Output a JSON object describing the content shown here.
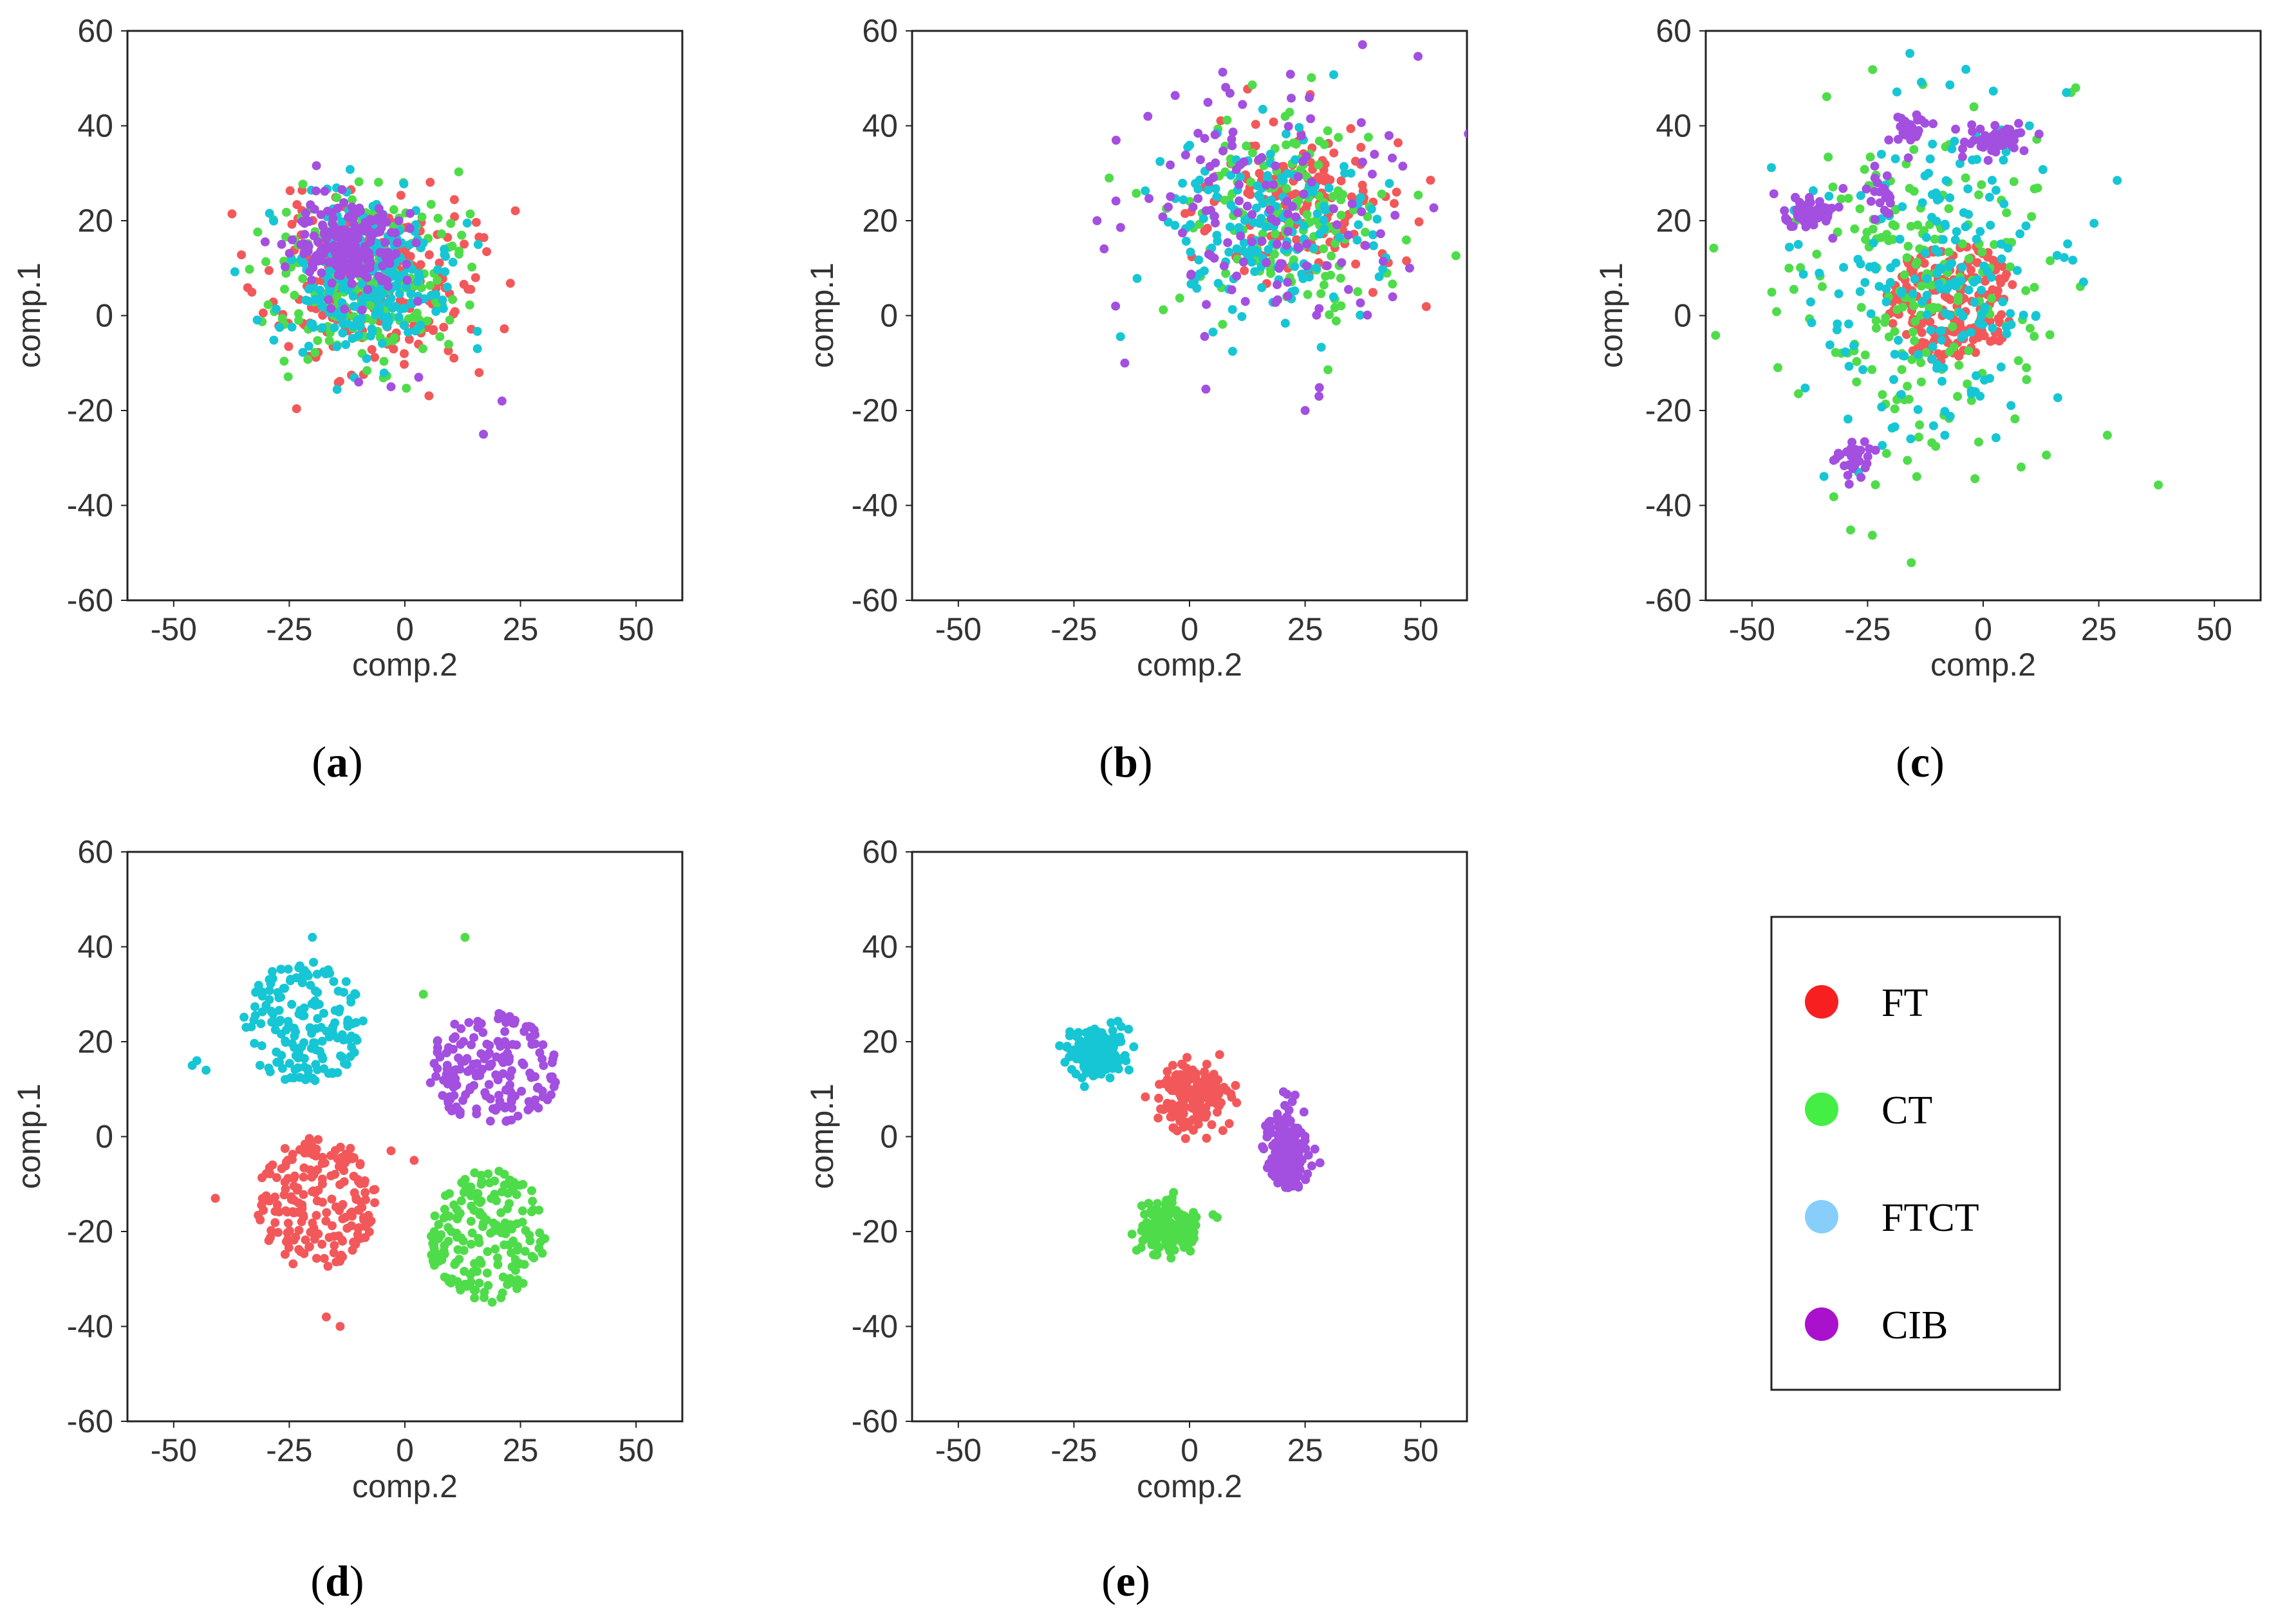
{
  "colors": {
    "FT": "#f2585a",
    "CT": "#4fdc4a",
    "FTCT": "#17c6d4",
    "CIB": "#a34fe0",
    "legend_FT": "#f71f1f",
    "legend_CT": "#44ee44",
    "legend_FTCT": "#87cefa",
    "legend_CIB": "#aa11cc"
  },
  "legend": {
    "items": [
      {
        "label": "FT",
        "key": "legend_FT"
      },
      {
        "label": "CT",
        "key": "legend_CT"
      },
      {
        "label": "FTCT",
        "key": "legend_FTCT"
      },
      {
        "label": "CIB",
        "key": "legend_CIB"
      }
    ]
  },
  "chart_data": [
    {
      "type": "scatter",
      "panel": "a",
      "caption": "a",
      "xlabel": "comp.2",
      "ylabel": "comp.1",
      "xlim": [
        -60,
        60
      ],
      "ylim": [
        -60,
        60
      ],
      "xticks": [
        -50,
        -25,
        0,
        25,
        50
      ],
      "yticks": [
        -60,
        -40,
        -20,
        0,
        20,
        40,
        60
      ],
      "grid": false,
      "series": [
        {
          "name": "FT",
          "layout": "gauss",
          "n": 230,
          "center": [
            -8,
            6
          ],
          "spread": [
            11,
            9
          ],
          "seed": 11
        },
        {
          "name": "CT",
          "layout": "gauss",
          "n": 230,
          "center": [
            -9,
            8
          ],
          "spread": [
            10,
            8.5
          ],
          "seed": 12
        },
        {
          "name": "FTCT",
          "layout": "gauss",
          "n": 240,
          "center": [
            -10,
            8
          ],
          "spread": [
            10,
            8.5
          ],
          "seed": 13
        },
        {
          "name": "CIB",
          "layout": "gauss",
          "n": 200,
          "center": [
            -12,
            15
          ],
          "spread": [
            6,
            5
          ],
          "seed": 14,
          "extra": [
            [
              17,
              -25
            ],
            [
              21,
              -18
            ],
            [
              -3,
              -15
            ],
            [
              -10,
              -14
            ],
            [
              3,
              -13
            ]
          ]
        }
      ]
    },
    {
      "type": "scatter",
      "panel": "b",
      "caption": "b",
      "xlabel": "comp.2",
      "ylabel": "comp.1",
      "xlim": [
        -60,
        60
      ],
      "ylim": [
        -60,
        60
      ],
      "xticks": [
        -50,
        -25,
        0,
        25,
        50
      ],
      "yticks": [
        -60,
        -40,
        -20,
        0,
        20,
        40,
        60
      ],
      "grid": false,
      "series": [
        {
          "name": "FT",
          "layout": "gauss",
          "n": 150,
          "center": [
            24,
            24
          ],
          "spread": [
            11,
            9
          ],
          "seed": 21
        },
        {
          "name": "CT",
          "layout": "gauss",
          "n": 150,
          "center": [
            20,
            22
          ],
          "spread": [
            12,
            10
          ],
          "seed": 22
        },
        {
          "name": "FTCT",
          "layout": "gauss",
          "n": 160,
          "center": [
            16,
            18
          ],
          "spread": [
            12,
            10
          ],
          "seed": 23
        },
        {
          "name": "CIB",
          "layout": "gauss",
          "n": 130,
          "center": [
            14,
            22
          ],
          "spread": [
            16,
            14
          ],
          "seed": 24,
          "extra": [
            [
              -20,
              20
            ],
            [
              28,
              -17
            ],
            [
              25,
              -20
            ],
            [
              -14,
              -10
            ],
            [
              -16,
              2
            ],
            [
              -9,
              42
            ],
            [
              40,
              34
            ]
          ]
        }
      ]
    },
    {
      "type": "scatter",
      "panel": "c",
      "caption": "c",
      "xlabel": "comp.2",
      "ylabel": "comp.1",
      "xlim": [
        -60,
        60
      ],
      "ylim": [
        -60,
        60
      ],
      "xticks": [
        -50,
        -25,
        0,
        25,
        50
      ],
      "yticks": [
        -60,
        -40,
        -20,
        0,
        20,
        40,
        60
      ],
      "grid": false,
      "series": [
        {
          "name": "FT",
          "layout": "uniform",
          "n": 200,
          "center": [
            -7,
            3
          ],
          "spread": [
            14,
            13
          ],
          "seed": 31
        },
        {
          "name": "CT",
          "layout": "gauss",
          "n": 210,
          "center": [
            -14,
            6
          ],
          "spread": [
            14,
            18
          ],
          "seed": 32,
          "extra": [
            [
              20,
              48
            ],
            [
              19,
              47
            ],
            [
              -15,
              35
            ],
            [
              -2,
              44
            ],
            [
              -42,
              10
            ]
          ]
        },
        {
          "name": "FTCT",
          "layout": "gauss",
          "n": 200,
          "center": [
            -10,
            8
          ],
          "spread": [
            14,
            18
          ],
          "seed": 33,
          "extra": [
            [
              -27,
              -33
            ],
            [
              18,
              47
            ],
            [
              -40,
              15
            ],
            [
              10,
              40
            ]
          ]
        },
        {
          "name": "CIB",
          "layout": "clusters",
          "seed": 34,
          "clusters": [
            {
              "center": [
                -38,
                22
              ],
              "spread": [
                3,
                2
              ],
              "n": 60
            },
            {
              "center": [
                2,
                37
              ],
              "spread": [
                4,
                2
              ],
              "n": 55
            },
            {
              "center": [
                -16,
                39
              ],
              "spread": [
                2,
                2
              ],
              "n": 30
            },
            {
              "center": [
                -22,
                25
              ],
              "spread": [
                2,
                2
              ],
              "n": 20
            },
            {
              "center": [
                -28,
                -30
              ],
              "spread": [
                2,
                2
              ],
              "n": 35
            }
          ]
        }
      ]
    },
    {
      "type": "scatter",
      "panel": "d",
      "caption": "d",
      "xlabel": "comp.2",
      "ylabel": "comp.1",
      "xlim": [
        -60,
        60
      ],
      "ylim": [
        -60,
        60
      ],
      "xticks": [
        -50,
        -25,
        0,
        25,
        50
      ],
      "yticks": [
        -60,
        -40,
        -20,
        0,
        20,
        40,
        60
      ],
      "grid": false,
      "series": [
        {
          "name": "FT",
          "layout": "uniform",
          "n": 200,
          "center": [
            -19,
            -14
          ],
          "spread": [
            13,
            14
          ],
          "seed": 41,
          "extra": [
            [
              -14,
              -40
            ],
            [
              -17,
              -38
            ],
            [
              -41,
              -13
            ],
            [
              2,
              -5
            ],
            [
              -3,
              -3
            ]
          ]
        },
        {
          "name": "CT",
          "layout": "uniform",
          "n": 180,
          "center": [
            18,
            -21
          ],
          "spread": [
            13,
            14
          ],
          "seed": 42,
          "extra": [
            [
              13,
              42
            ],
            [
              4,
              30
            ],
            [
              7,
              20
            ]
          ]
        },
        {
          "name": "FTCT",
          "layout": "uniform",
          "n": 170,
          "center": [
            -22,
            24
          ],
          "spread": [
            13,
            13
          ],
          "seed": 43,
          "extra": [
            [
              -46,
              15
            ],
            [
              -43,
              14
            ],
            [
              -45,
              16
            ],
            [
              -20,
              42
            ]
          ]
        },
        {
          "name": "CIB",
          "layout": "uniform",
          "n": 180,
          "center": [
            19,
            14
          ],
          "spread": [
            14,
            12
          ],
          "seed": 44
        }
      ]
    },
    {
      "type": "scatter",
      "panel": "e",
      "caption": "e",
      "xlabel": "comp.2",
      "ylabel": "comp.1",
      "xlim": [
        -60,
        60
      ],
      "ylim": [
        -60,
        60
      ],
      "xticks": [
        -50,
        -25,
        0,
        25,
        50
      ],
      "yticks": [
        -60,
        -40,
        -20,
        0,
        20,
        40,
        60
      ],
      "grid": false,
      "series": [
        {
          "name": "FT",
          "layout": "gauss",
          "n": 180,
          "center": [
            0,
            8
          ],
          "spread": [
            3.5,
            3.5
          ],
          "seed": 51
        },
        {
          "name": "CT",
          "layout": "gauss",
          "n": 160,
          "center": [
            -4,
            -19
          ],
          "spread": [
            3,
            3
          ],
          "seed": 52
        },
        {
          "name": "FTCT",
          "layout": "gauss",
          "n": 170,
          "center": [
            -20,
            18
          ],
          "spread": [
            3,
            2.6
          ],
          "seed": 53
        },
        {
          "name": "CIB",
          "layout": "gauss",
          "n": 160,
          "center": [
            21,
            -3
          ],
          "spread": [
            2.3,
            4.5
          ],
          "seed": 54
        }
      ]
    }
  ]
}
